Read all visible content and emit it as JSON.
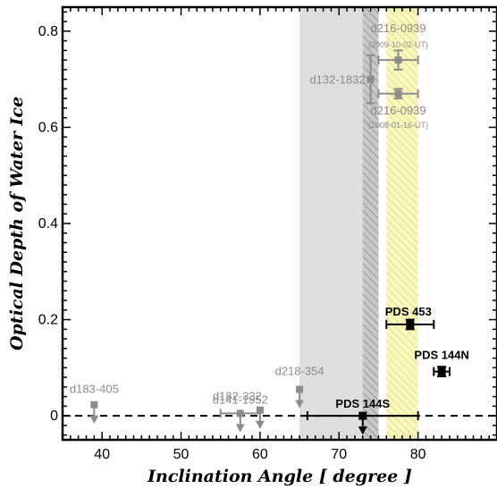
{
  "chart_data": {
    "type": "scatter",
    "xlabel": "Inclination Angle [ degree ]",
    "ylabel": "Optical Depth of Water Ice",
    "xlim": [
      35,
      90
    ],
    "ylim": [
      -0.05,
      0.85
    ],
    "x_ticks": [
      "40",
      "50",
      "60",
      "70",
      "80"
    ],
    "y_ticks": [
      "0",
      "0.2",
      "0.4",
      "0.6",
      "0.8"
    ],
    "x_tick_values": [
      40,
      50,
      60,
      70,
      80
    ],
    "y_tick_values": [
      0,
      0.2,
      0.4,
      0.6,
      0.8
    ],
    "baseline": {
      "y": 0,
      "style": "dashed"
    },
    "shaded_regions": [
      {
        "x0": 65,
        "x1": 75,
        "color": "#dedede",
        "hatch": false
      },
      {
        "x0": 73,
        "x1": 75,
        "color": "#b0b0b0",
        "hatch": true
      },
      {
        "x0": 76,
        "x1": 80,
        "color": "#fbf8b8",
        "hatch": true
      }
    ],
    "gray_points": [
      {
        "label": "d216-0939",
        "sublabel": "(2009-10-02-UT)",
        "x": 77.5,
        "y": 0.74,
        "xerr": [
          75.0,
          80.0
        ],
        "yerr": [
          0.72,
          0.76
        ],
        "upper_limit": false
      },
      {
        "label": "d216-0939",
        "sublabel": "(2008-01-16-UT)",
        "x": 77.5,
        "y": 0.67,
        "xerr": [
          75.0,
          80.0
        ],
        "yerr": [
          0.66,
          0.68
        ],
        "upper_limit": false
      },
      {
        "label": "d132-1832",
        "sublabel": "",
        "x": 74.0,
        "y": 0.7,
        "xerr": null,
        "yerr": [
          0.65,
          0.75
        ],
        "upper_limit": false
      },
      {
        "label": "d218-354",
        "sublabel": "",
        "x": 65.0,
        "y": 0.055,
        "xerr": null,
        "yerr": null,
        "upper_limit": true
      },
      {
        "label": "d182-332",
        "sublabel": "",
        "x": 60.0,
        "y": 0.012,
        "xerr": null,
        "yerr": null,
        "upper_limit": true
      },
      {
        "label": "d141-1952",
        "sublabel": "",
        "x": 57.5,
        "y": 0.005,
        "xerr": [
          55.0,
          60.0
        ],
        "yerr": null,
        "upper_limit": true
      },
      {
        "label": "d183-405",
        "sublabel": "",
        "x": 39.0,
        "y": 0.023,
        "xerr": null,
        "yerr": null,
        "upper_limit": true
      }
    ],
    "black_points": [
      {
        "label": "PDS 453",
        "x": 79.0,
        "y": 0.19,
        "xerr": [
          76.0,
          82.0
        ],
        "yerr": [
          0.18,
          0.2
        ],
        "upper_limit": false
      },
      {
        "label": "PDS 144N",
        "x": 83.0,
        "y": 0.092,
        "xerr": [
          82.0,
          84.0
        ],
        "yerr": [
          0.082,
          0.102
        ],
        "upper_limit": false
      },
      {
        "label": "PDS 144S",
        "x": 73.0,
        "y": 0.0,
        "xerr": [
          66.0,
          80.0
        ],
        "yerr": null,
        "upper_limit": true
      }
    ]
  }
}
